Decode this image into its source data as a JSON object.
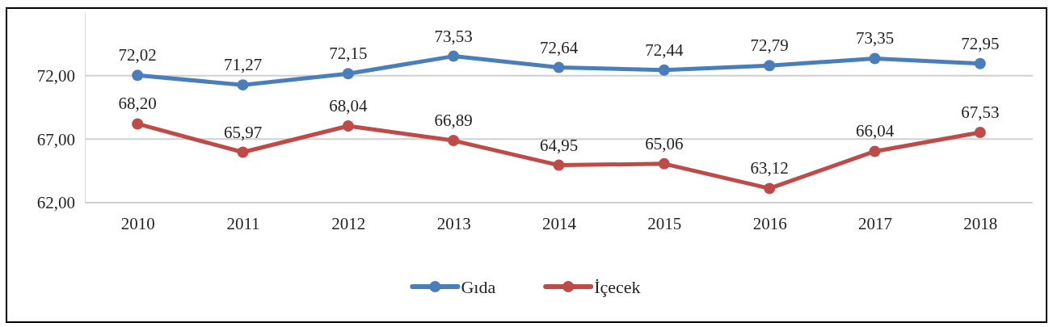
{
  "chart_data": {
    "type": "line",
    "categories": [
      "2010",
      "2011",
      "2012",
      "2013",
      "2014",
      "2015",
      "2016",
      "2017",
      "2018"
    ],
    "series": [
      {
        "name": "Gıda",
        "color": "#4a7ebb",
        "values": [
          72.02,
          71.27,
          72.15,
          73.53,
          72.64,
          72.44,
          72.79,
          73.35,
          72.95
        ],
        "value_labels": [
          "72,02",
          "71,27",
          "72,15",
          "73,53",
          "72,64",
          "72,44",
          "72,79",
          "73,35",
          "72,95"
        ]
      },
      {
        "name": "İçecek",
        "color": "#be4b48",
        "values": [
          68.2,
          65.97,
          68.04,
          66.89,
          64.95,
          65.06,
          63.12,
          66.04,
          67.53
        ],
        "value_labels": [
          "68,20",
          "65,97",
          "68,04",
          "66,89",
          "64,95",
          "65,06",
          "63,12",
          "66,04",
          "67,53"
        ]
      }
    ],
    "ylim": [
      62,
      77
    ],
    "yticks": [
      {
        "value": 62,
        "label": "62,00"
      },
      {
        "value": 67,
        "label": "67,00"
      },
      {
        "value": 72,
        "label": "72,00"
      }
    ],
    "grid": "y",
    "legend": "bottom",
    "marker": "circle",
    "line_style": "solid"
  }
}
